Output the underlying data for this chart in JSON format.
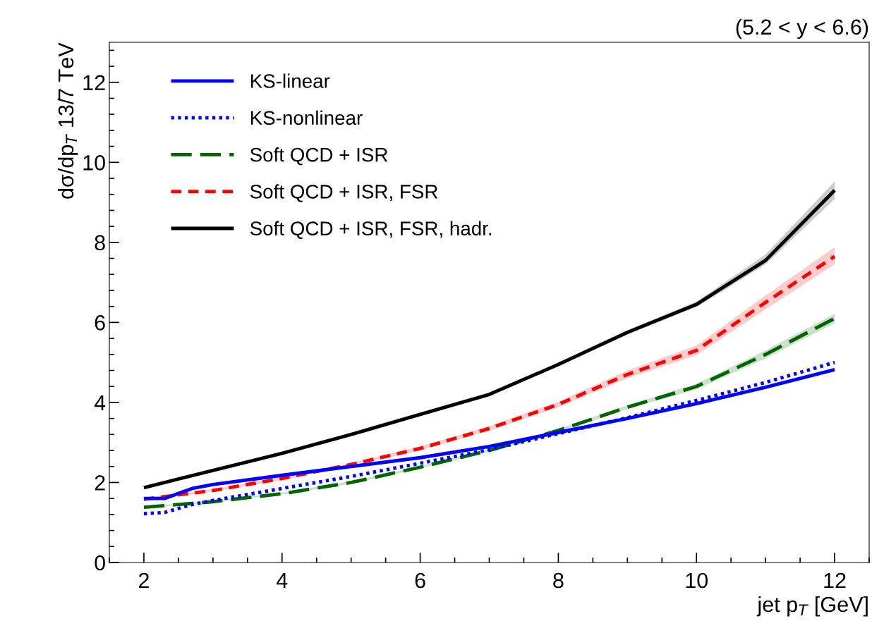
{
  "chart_data": {
    "type": "line",
    "title": "(5.2 < y < 6.6)",
    "xlabel": "jet p$_{T}$ [GeV]",
    "ylabel": "dσ/dp$_{T}$ 13/7 TeV",
    "xlim": [
      1.5,
      12.5
    ],
    "ylim": [
      0,
      13
    ],
    "xticks": [
      2,
      4,
      6,
      8,
      10,
      12
    ],
    "yticks": [
      0,
      2,
      4,
      6,
      8,
      10,
      12
    ],
    "grid": false,
    "legend": "top left",
    "marker": "none",
    "series": [
      {
        "name": "KS-linear",
        "color": "#0000ff",
        "line_style": "solid",
        "x": [
          2,
          2.3,
          2.7,
          3,
          4,
          5,
          6,
          7,
          8,
          9,
          10,
          11,
          12
        ],
        "values": [
          1.6,
          1.6,
          1.85,
          1.95,
          2.18,
          2.4,
          2.62,
          2.9,
          3.25,
          3.6,
          3.97,
          4.38,
          4.82
        ]
      },
      {
        "name": "KS-nonlinear",
        "color": "#0000ff",
        "line_style": "dotted",
        "x": [
          2,
          2.3,
          2.7,
          3,
          4,
          5,
          6,
          7,
          8,
          9,
          10,
          11,
          12
        ],
        "values": [
          1.22,
          1.25,
          1.45,
          1.55,
          1.85,
          2.15,
          2.48,
          2.82,
          3.22,
          3.62,
          4.05,
          4.5,
          5.0
        ]
      },
      {
        "name": "Soft QCD + ISR",
        "color": "#006400",
        "line_style": "longdash",
        "x": [
          2,
          3,
          4,
          5,
          6,
          7,
          8,
          9,
          10,
          11,
          12
        ],
        "values": [
          1.38,
          1.52,
          1.72,
          2.0,
          2.38,
          2.8,
          3.3,
          3.88,
          4.4,
          5.2,
          6.1
        ],
        "lower": [
          1.36,
          1.5,
          1.7,
          1.97,
          2.35,
          2.77,
          3.26,
          3.83,
          4.33,
          5.1,
          5.98
        ],
        "upper": [
          1.4,
          1.54,
          1.75,
          2.03,
          2.41,
          2.84,
          3.34,
          3.93,
          4.47,
          5.3,
          6.22
        ]
      },
      {
        "name": "Soft QCD + ISR, FSR",
        "color": "#ff0000",
        "line_style": "dashed",
        "x": [
          2,
          3,
          4,
          5,
          6,
          7,
          8,
          9,
          10,
          11,
          12
        ],
        "values": [
          1.58,
          1.8,
          2.1,
          2.45,
          2.85,
          3.35,
          3.95,
          4.7,
          5.3,
          6.5,
          7.65
        ],
        "lower": [
          1.55,
          1.77,
          2.06,
          2.41,
          2.8,
          3.29,
          3.88,
          4.6,
          5.18,
          6.33,
          7.45
        ],
        "upper": [
          1.61,
          1.83,
          2.14,
          2.49,
          2.9,
          3.41,
          4.02,
          4.8,
          5.42,
          6.67,
          7.88
        ]
      },
      {
        "name": "Soft QCD + ISR, FSR, hadr.",
        "color": "#000000",
        "line_style": "solid",
        "x": [
          2,
          3,
          4,
          5,
          6,
          7,
          8,
          9,
          10,
          11,
          12
        ],
        "values": [
          1.87,
          2.3,
          2.73,
          3.2,
          3.7,
          4.2,
          4.95,
          5.75,
          6.45,
          7.55,
          9.3
        ],
        "lower": [
          1.85,
          2.28,
          2.71,
          3.17,
          3.67,
          4.17,
          4.91,
          5.7,
          6.38,
          7.45,
          9.08
        ],
        "upper": [
          1.89,
          2.32,
          2.75,
          3.23,
          3.73,
          4.23,
          4.99,
          5.8,
          6.52,
          7.7,
          9.52
        ]
      }
    ]
  }
}
